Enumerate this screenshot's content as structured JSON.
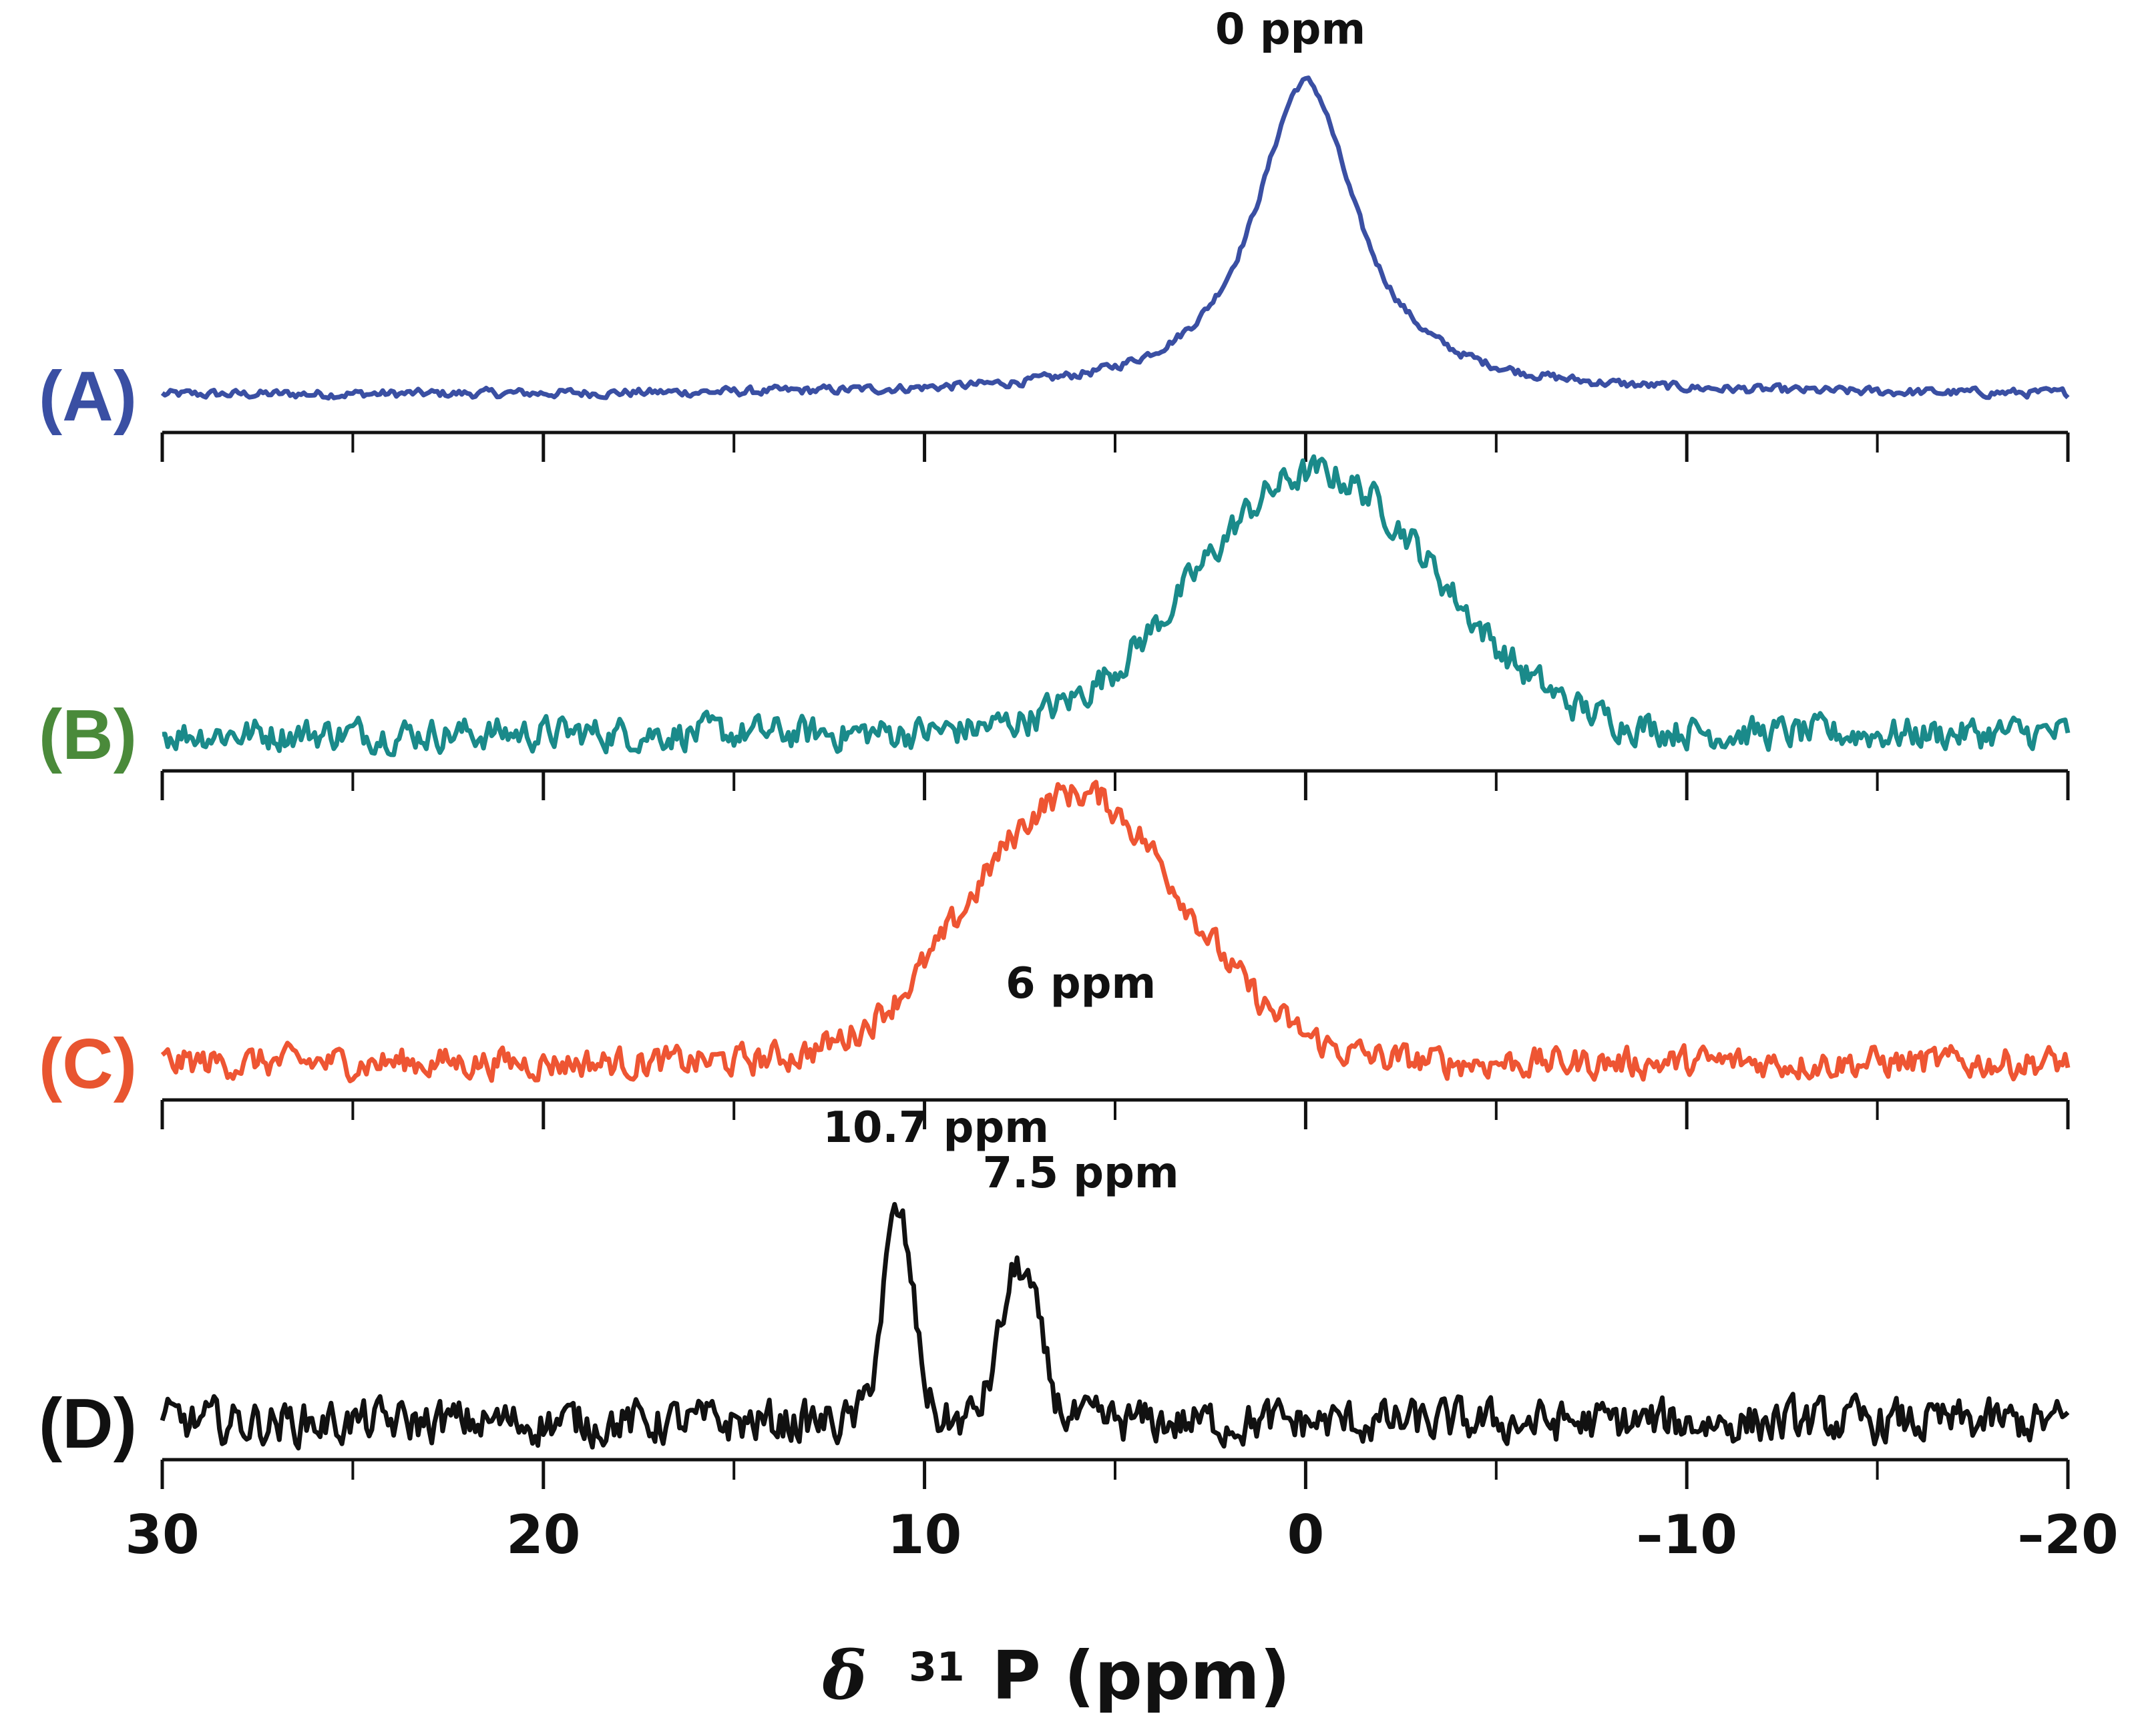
{
  "chart_data": {
    "type": "line",
    "title": "",
    "xlabel_parts": {
      "symbol": "δ",
      "mass": "31",
      "rest": "P (ppm)"
    },
    "xlim": [
      30,
      -20
    ],
    "major_ticks": [
      30,
      20,
      10,
      0,
      -10,
      -20
    ],
    "tick_labels": [
      "30",
      "20",
      "10",
      "0",
      "–10",
      "–20"
    ],
    "minor_ticks": [
      25,
      15,
      5,
      -5,
      -15
    ],
    "series": [
      {
        "name": "(A)",
        "color": "#3a4fa3",
        "label_color": "#3a4fa3",
        "peaks": [
          {
            "center": 0.0,
            "height": 1.0,
            "width": 1.6,
            "shape": "lorentz"
          }
        ],
        "noise": 0.012,
        "annotations": [
          {
            "text": "0 ppm",
            "x": 0.4,
            "y": 1.12
          }
        ]
      },
      {
        "name": "(B)",
        "color": "#1a8a8a",
        "label_color": "#4a8a3a",
        "peaks": [
          {
            "center": -0.3,
            "height": 0.83,
            "width": 3.2,
            "shape": "gauss"
          }
        ],
        "noise": 0.045,
        "annotations": []
      },
      {
        "name": "(C)",
        "color": "#ee5533",
        "label_color": "#e85530",
        "peaks": [
          {
            "center": 6.0,
            "height": 0.92,
            "width": 2.8,
            "shape": "gauss"
          }
        ],
        "noise": 0.045,
        "annotations": [
          {
            "text": "6 ppm",
            "x": 5.9,
            "y": 0.22
          }
        ]
      },
      {
        "name": "(D)",
        "color": "#111111",
        "label_color": "#111111",
        "peaks": [
          {
            "center": 10.7,
            "height": 0.77,
            "width": 0.4,
            "shape": "gauss"
          },
          {
            "center": 7.5,
            "height": 0.58,
            "width": 0.5,
            "shape": "gauss"
          }
        ],
        "noise": 0.07,
        "annotations": [
          {
            "text": "10.7 ppm",
            "x": 9.7,
            "y": 1.05
          },
          {
            "text": "7.5 ppm",
            "x": 5.9,
            "y": 0.88
          }
        ]
      }
    ]
  }
}
